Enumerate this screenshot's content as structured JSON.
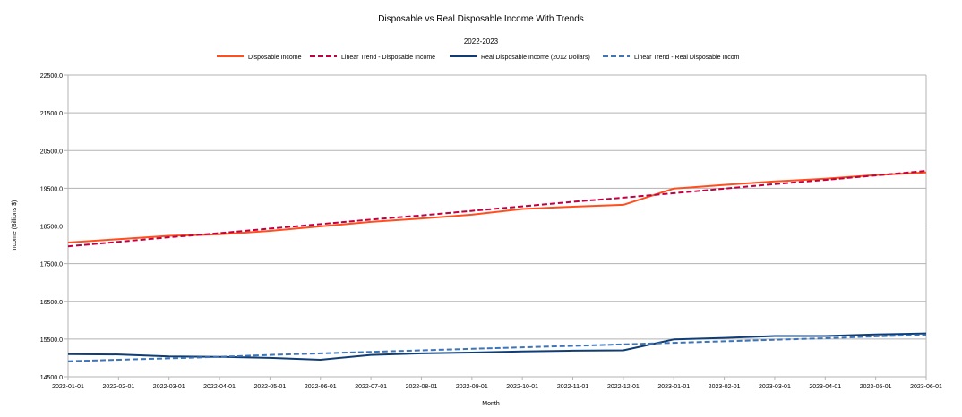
{
  "chart_data": {
    "type": "line",
    "title": "Disposable vs Real Disposable Income With Trends",
    "subtitle": "2022-2023",
    "xlabel": "Month",
    "ylabel": "Income (Billions $)",
    "ylim": [
      14500,
      22500
    ],
    "yticks": [
      "22500.0",
      "21500.0",
      "20500.0",
      "19500.0",
      "18500.0",
      "17500.0",
      "16500.0",
      "15500.0",
      "14500.0"
    ],
    "ytick_values": [
      22500,
      21500,
      20500,
      19500,
      18500,
      17500,
      16500,
      15500,
      14500
    ],
    "categories": [
      "2022-01-01",
      "2022-02-01",
      "2022-03-01",
      "2022-04-01",
      "2022-05-01",
      "2022-06-01",
      "2022-07-01",
      "2022-08-01",
      "2022-09-01",
      "2022-10-01",
      "2022-11-01",
      "2022-12-01",
      "2023-01-01",
      "2023-02-01",
      "2023-03-01",
      "2023-04-01",
      "2023-05-01",
      "2023-06-01"
    ],
    "grid": true,
    "legend_position": "top",
    "series": [
      {
        "name": "Disposable Income",
        "color": "#ff4f1f",
        "dash": false,
        "values": [
          18060,
          18150,
          18240,
          18280,
          18370,
          18490,
          18610,
          18700,
          18800,
          18950,
          19010,
          19060,
          19490,
          19590,
          19680,
          19750,
          19850,
          19920
        ]
      },
      {
        "name": "Linear Trend - Disposable Income",
        "color": "#c00040",
        "dash": true,
        "values": [
          17960,
          18080,
          18200,
          18310,
          18430,
          18550,
          18670,
          18780,
          18900,
          19020,
          19140,
          19250,
          19370,
          19490,
          19610,
          19720,
          19840,
          19960
        ]
      },
      {
        "name": "Real Disposable Income (2012 Dollars)",
        "color": "#0f3d74",
        "dash": false,
        "values": [
          15100,
          15090,
          15040,
          15030,
          15000,
          14950,
          15080,
          15120,
          15140,
          15170,
          15190,
          15200,
          15490,
          15530,
          15580,
          15580,
          15620,
          15650
        ]
      },
      {
        "name": "Linear Trend - Real Disposable Incom",
        "color": "#3e74b8",
        "dash": true,
        "values": [
          14910,
          14950,
          14990,
          15030,
          15080,
          15120,
          15160,
          15200,
          15240,
          15280,
          15320,
          15360,
          15400,
          15440,
          15480,
          15520,
          15570,
          15610
        ]
      }
    ]
  }
}
